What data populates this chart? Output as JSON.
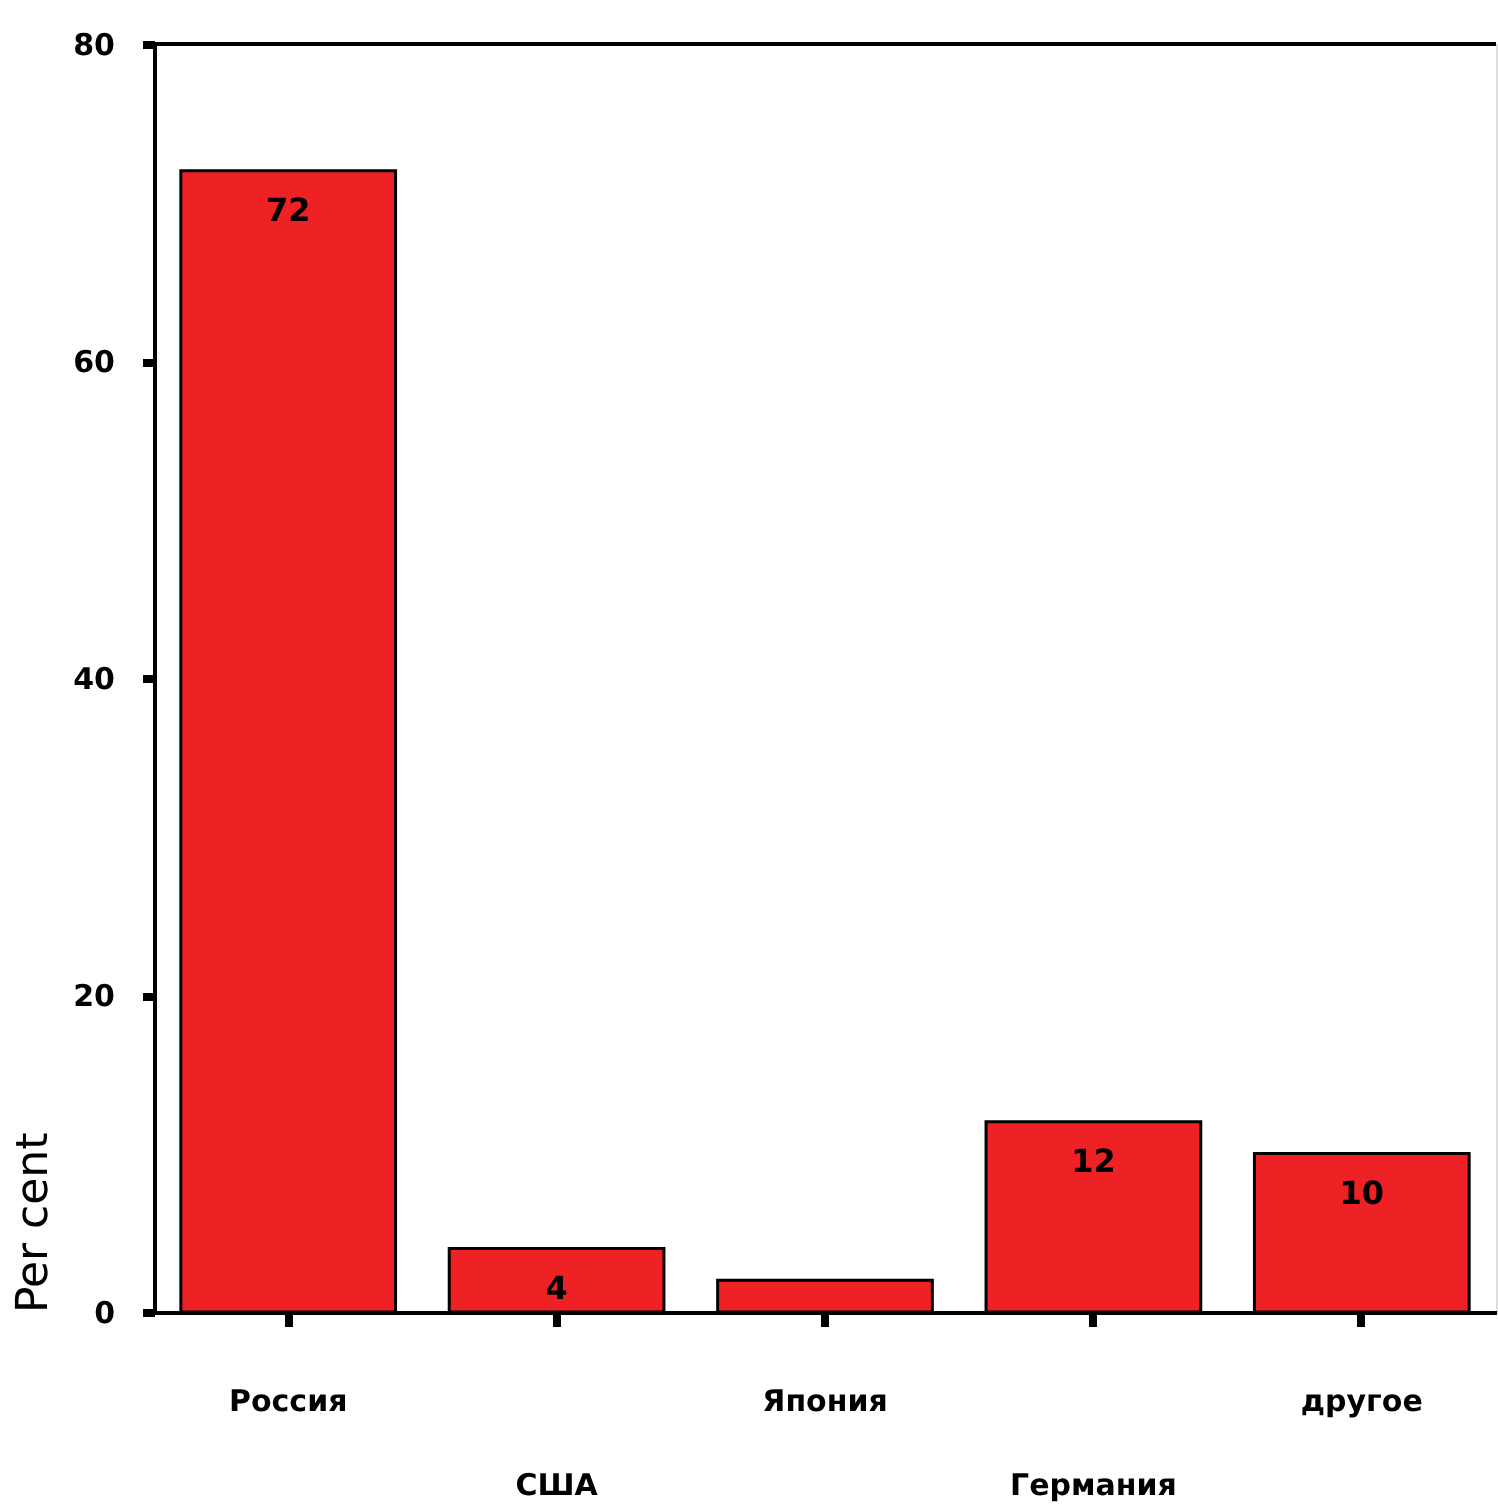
{
  "chart_data": {
    "type": "bar",
    "ylabel": "Per cent",
    "categories": [
      "Россия",
      "США",
      "Япония",
      "Германия",
      "другое"
    ],
    "values": [
      72,
      4,
      2,
      12,
      10
    ],
    "value_labels": [
      "72",
      "4",
      null,
      "12",
      "10"
    ],
    "color": "#ee2224",
    "ylim": [
      0,
      80
    ],
    "yticks": [
      0,
      20,
      40,
      60,
      80
    ],
    "grid": false
  }
}
